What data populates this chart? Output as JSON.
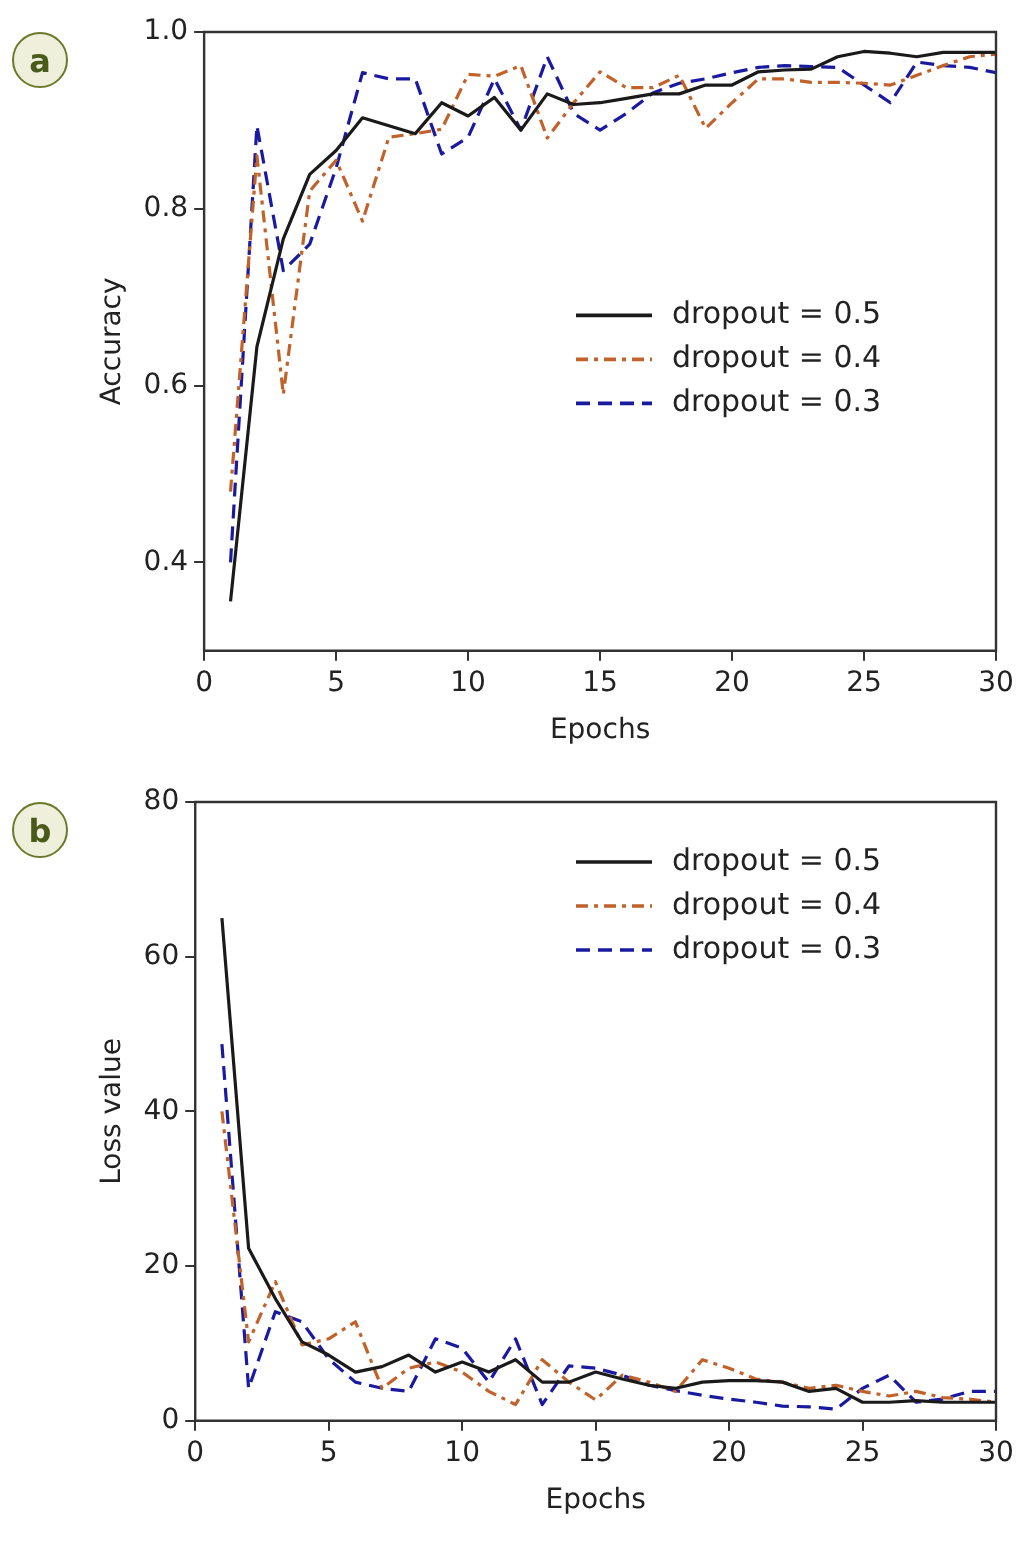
{
  "chart_data": [
    {
      "type": "line",
      "annotations": [
        "a"
      ],
      "xlabel": "Epochs",
      "ylabel": "Accuracy",
      "x": [
        1,
        2,
        3,
        4,
        5,
        6,
        7,
        8,
        9,
        10,
        11,
        12,
        13,
        14,
        15,
        16,
        17,
        18,
        19,
        20,
        21,
        22,
        23,
        24,
        25,
        26,
        27,
        28,
        29,
        30
      ],
      "xlim": [
        0,
        30
      ],
      "xticks": [
        0,
        5,
        10,
        15,
        20,
        25,
        30
      ],
      "ylim": [
        0.3,
        1.0
      ],
      "yticks": [
        0.4,
        0.6,
        0.8,
        {
          "value": 1,
          "label": "1.0"
        }
      ],
      "legend": "right",
      "grid": false,
      "marker": "none",
      "series": [
        {
          "name": "dropout = 0.5",
          "color": "#1a1a1a",
          "line_style": "solid",
          "values": [
            0.356,
            0.644,
            0.766,
            0.839,
            0.866,
            0.903,
            0.894,
            0.885,
            0.92,
            0.905,
            0.926,
            0.889,
            0.93,
            0.918,
            0.92,
            0.925,
            0.93,
            0.93,
            0.94,
            0.94,
            0.955,
            0.957,
            0.958,
            0.972,
            0.978,
            0.976,
            0.972,
            0.977,
            0.977,
            0.977
          ]
        },
        {
          "name": "dropout = 0.4",
          "color": "#c0622a",
          "line_style": "dashdot",
          "values": [
            0.48,
            0.86,
            0.59,
            0.82,
            0.855,
            0.786,
            0.881,
            0.885,
            0.89,
            0.952,
            0.95,
            0.962,
            0.88,
            0.92,
            0.955,
            0.937,
            0.937,
            0.951,
            0.891,
            0.92,
            0.947,
            0.947,
            0.943,
            0.943,
            0.942,
            0.94,
            0.951,
            0.962,
            0.972,
            0.975
          ]
        },
        {
          "name": "dropout = 0.3",
          "color": "#1a1aa0",
          "line_style": "dashed",
          "values": [
            0.4,
            0.894,
            0.73,
            0.76,
            0.846,
            0.954,
            0.947,
            0.947,
            0.862,
            0.881,
            0.947,
            0.889,
            0.972,
            0.908,
            0.889,
            0.908,
            0.931,
            0.942,
            0.947,
            0.954,
            0.96,
            0.962,
            0.961,
            0.96,
            0.94,
            0.92,
            0.966,
            0.962,
            0.96,
            0.954
          ]
        }
      ]
    },
    {
      "type": "line",
      "annotations": [
        "b"
      ],
      "xlabel": "Epochs",
      "ylabel": "Loss value",
      "x": [
        1,
        2,
        3,
        4,
        5,
        6,
        7,
        8,
        9,
        10,
        11,
        12,
        13,
        14,
        15,
        16,
        17,
        18,
        19,
        20,
        21,
        22,
        23,
        24,
        25,
        26,
        27,
        28,
        29,
        30
      ],
      "xlim": [
        0,
        30
      ],
      "xticks": [
        0,
        5,
        10,
        15,
        20,
        25,
        30
      ],
      "ylim": [
        0,
        80
      ],
      "yticks": [
        0,
        20,
        40,
        60,
        80
      ],
      "legend": "top right",
      "grid": false,
      "marker": "none",
      "series": [
        {
          "name": "dropout = 0.5",
          "color": "#1a1a1a",
          "line_style": "solid",
          "values": [
            65,
            22.3,
            15.8,
            10.2,
            8.5,
            6.3,
            7,
            8.5,
            6.3,
            7.6,
            6.3,
            7.9,
            5,
            5,
            6.3,
            5.4,
            4.6,
            4.2,
            5,
            5.2,
            5.2,
            5,
            3.8,
            4.2,
            2.4,
            2.4,
            2.6,
            2.4,
            2.4,
            2.4
          ]
        },
        {
          "name": "dropout = 0.4",
          "color": "#c0622a",
          "line_style": "dashdot",
          "values": [
            40,
            10.2,
            18,
            9.8,
            10.6,
            12.8,
            4.2,
            6.8,
            7.6,
            6.3,
            3.8,
            2.1,
            7.9,
            5,
            2.7,
            5.9,
            5,
            3.8,
            7.9,
            6.8,
            5.4,
            5,
            4.2,
            4.6,
            3.8,
            3.2,
            3.8,
            3,
            2.8,
            2.4
          ]
        },
        {
          "name": "dropout = 0.3",
          "color": "#1a1aa0",
          "line_style": "dashed",
          "values": [
            48.7,
            4.2,
            14.1,
            12.8,
            8,
            5,
            4.2,
            3.8,
            10.6,
            9.4,
            5,
            10.6,
            2.1,
            7.1,
            6.8,
            5.9,
            4.6,
            3.9,
            3.3,
            2.8,
            2.4,
            1.9,
            1.8,
            1.5,
            4.2,
            5.9,
            2.4,
            2.8,
            3.8,
            3.8
          ]
        }
      ]
    }
  ]
}
